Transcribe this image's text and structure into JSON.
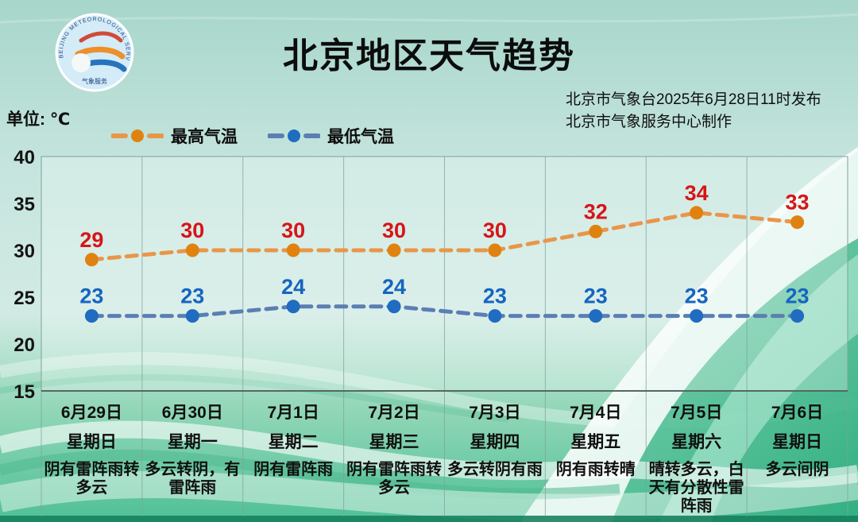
{
  "header": {
    "title": "北京地区天气趋势",
    "issue_line1": "北京市气象台2025年6月28日11时发布",
    "issue_line2": "北京市气象服务中心制作",
    "unit_label": "单位: ℃",
    "logo_arc_text": "BEIJING METEOROLOGICAL SERVICE",
    "logo_bottom_text": "气象服务"
  },
  "legend": [
    {
      "label": "最高气温",
      "line_color": "#e9964a",
      "dot_color": "#e0820f"
    },
    {
      "label": "最低气温",
      "line_color": "#5b7fb3",
      "dot_color": "#1f6cc0"
    }
  ],
  "chart_data": {
    "type": "line",
    "title": "北京地区天气趋势",
    "ylabel": "单位: ℃",
    "ylim": [
      15,
      40
    ],
    "yticks": [
      40,
      35,
      30,
      25,
      20,
      15
    ],
    "grid": "vertical-only",
    "legend_position": "top-left",
    "categories": [
      "6月29日",
      "6月30日",
      "7月1日",
      "7月2日",
      "7月3日",
      "7月4日",
      "7月5日",
      "7月6日"
    ],
    "weekdays": [
      "星期日",
      "星期一",
      "星期二",
      "星期三",
      "星期四",
      "星期五",
      "星期六",
      "星期日"
    ],
    "weather": [
      "阴有雷阵雨转多云",
      "多云转阴，有雷阵雨",
      "阴有雷阵雨",
      "阴有雷阵雨转多云",
      "多云转阴有雨",
      "阴有雨转晴",
      "晴转多云，白天有分散性雷阵雨",
      "多云间阴"
    ],
    "series": [
      {
        "name": "最高气温",
        "values": [
          29,
          30,
          30,
          30,
          30,
          32,
          34,
          33
        ],
        "line_color": "#e9964a",
        "dot_color": "#e0820f",
        "label_color": "#d61518"
      },
      {
        "name": "最低气温",
        "values": [
          23,
          23,
          24,
          24,
          23,
          23,
          23,
          23
        ],
        "line_color": "#5b7fb3",
        "dot_color": "#1f6cc0",
        "label_color": "#1565c0"
      }
    ]
  },
  "style_colors": {
    "bg_top": "#a7d6cb",
    "bg_mid": "#cfe9e2",
    "bg_green": "#57c59b",
    "bottom_strip": "#15805c",
    "grid_line": "#7fa29c"
  }
}
